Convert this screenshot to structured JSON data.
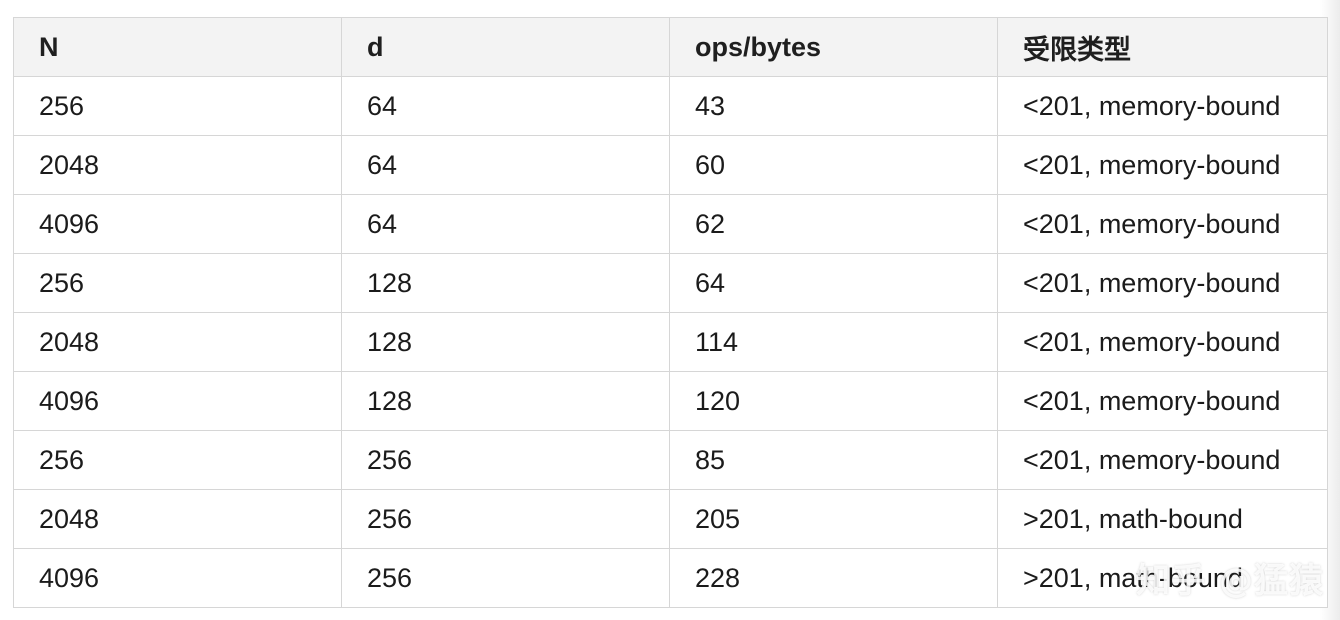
{
  "table": {
    "headers": [
      "N",
      "d",
      "ops/bytes",
      "受限类型"
    ],
    "rows": [
      [
        "256",
        "64",
        "43",
        "<201, memory-bound"
      ],
      [
        "2048",
        "64",
        "60",
        "<201, memory-bound"
      ],
      [
        "4096",
        "64",
        "62",
        "<201, memory-bound"
      ],
      [
        "256",
        "128",
        "64",
        "<201, memory-bound"
      ],
      [
        "2048",
        "128",
        "114",
        "<201, memory-bound"
      ],
      [
        "4096",
        "128",
        "120",
        "<201, memory-bound"
      ],
      [
        "256",
        "256",
        "85",
        "<201, memory-bound"
      ],
      [
        "2048",
        "256",
        "205",
        ">201, math-bound"
      ],
      [
        "4096",
        "256",
        "228",
        ">201, math-bound"
      ]
    ]
  },
  "watermark": {
    "text": "知乎 @猛猿"
  }
}
